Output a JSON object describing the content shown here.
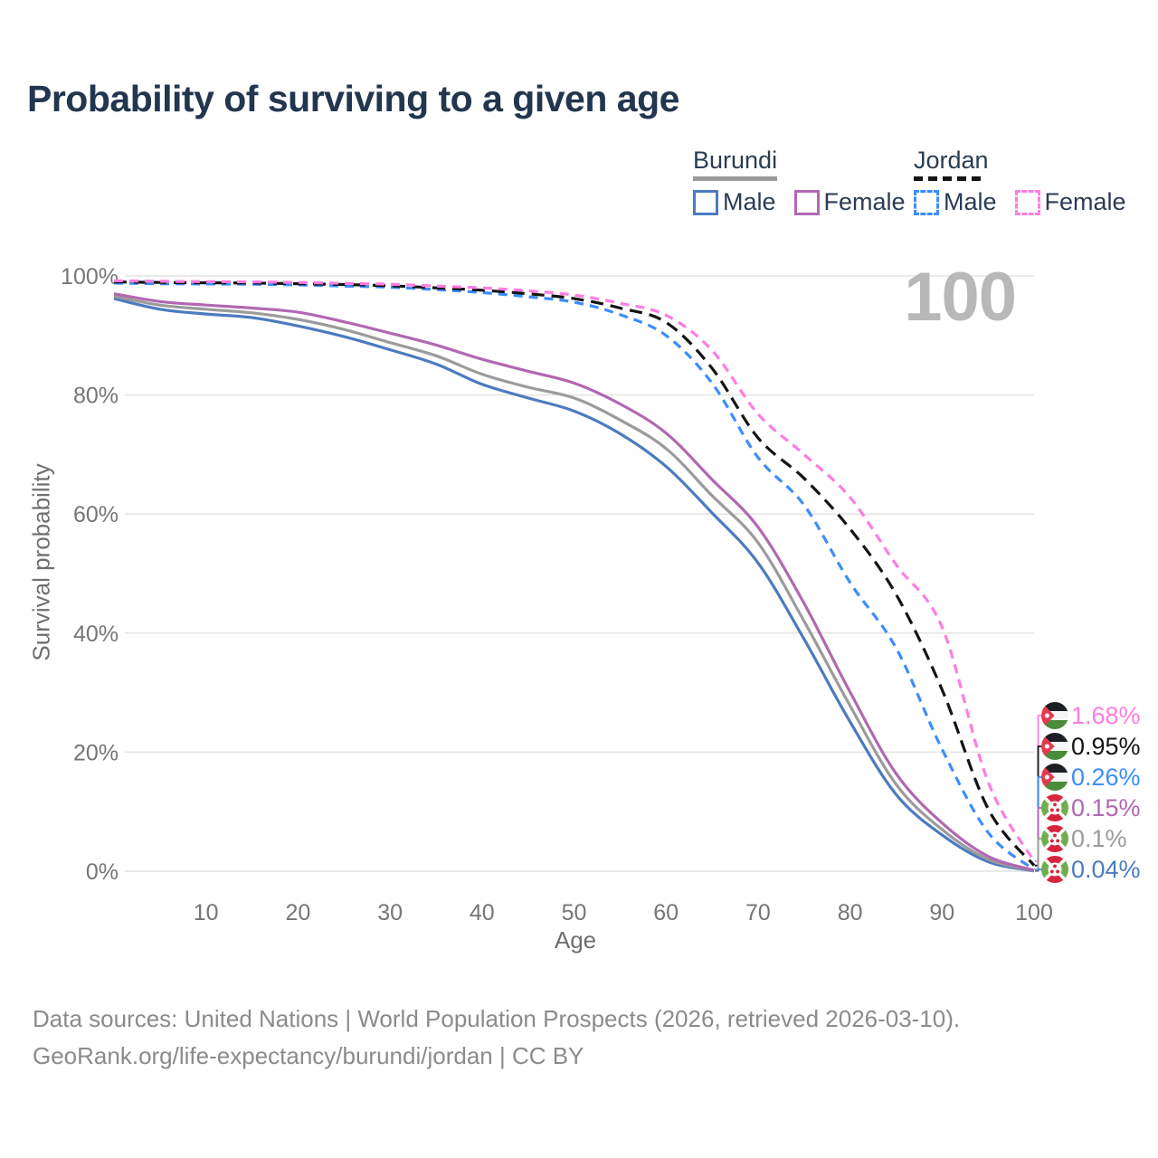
{
  "title": "Probability of surviving to a given age",
  "watermark": "100",
  "legend": {
    "groups": [
      {
        "label": "Burundi",
        "line_style": "solid",
        "line_color": "#9b9b9b",
        "underline_width": 93,
        "items": [
          {
            "label": "Male",
            "color": "#4b7bc0",
            "style": "solid"
          },
          {
            "label": "Female",
            "color": "#b168b1",
            "style": "solid"
          }
        ]
      },
      {
        "label": "Jordan",
        "line_style": "dashed",
        "line_color": "#141414",
        "underline_width": 78,
        "items": [
          {
            "label": "Male",
            "color": "#3c8dfc",
            "style": "dashed"
          },
          {
            "label": "Female",
            "color": "#ff7ce1",
            "style": "dashed"
          }
        ]
      }
    ]
  },
  "chart_data": {
    "type": "line",
    "title": "Probability of surviving to a given age",
    "xlabel": "Age",
    "ylabel": "Survival probability",
    "xlim": [
      0,
      100
    ],
    "ylim": [
      0,
      100
    ],
    "x_ticks": [
      10,
      20,
      30,
      40,
      50,
      60,
      70,
      80,
      90,
      100
    ],
    "y_ticks": [
      0,
      20,
      40,
      60,
      80,
      100
    ],
    "y_tick_suffix": "%",
    "grid": "horizontal",
    "legend_position": "top-right",
    "x": [
      0,
      5,
      10,
      15,
      20,
      25,
      30,
      35,
      40,
      45,
      50,
      55,
      60,
      65,
      70,
      75,
      80,
      85,
      90,
      95,
      100
    ],
    "series": [
      {
        "name": "Jordan Female",
        "country": "Jordan",
        "sex": "Female",
        "color": "#ff7ce1",
        "dash": "dashed",
        "end_label": "1.68%",
        "values": [
          99.2,
          99.1,
          99.05,
          99.0,
          98.9,
          98.75,
          98.6,
          98.3,
          98.0,
          97.5,
          96.8,
          95.4,
          93.4,
          87.5,
          76.8,
          70.0,
          62.8,
          51.5,
          41.0,
          15.0,
          1.68
        ]
      },
      {
        "name": "Jordan Both sexes",
        "country": "Jordan",
        "sex": "Both",
        "color": "#141414",
        "dash": "dashed-long",
        "end_label": "0.95%",
        "values": [
          99.0,
          98.9,
          98.85,
          98.8,
          98.7,
          98.55,
          98.35,
          98.0,
          97.6,
          97.0,
          96.2,
          94.6,
          92.2,
          84.5,
          72.8,
          66.0,
          57.5,
          46.5,
          30.5,
          10.5,
          0.95
        ]
      },
      {
        "name": "Jordan Male",
        "country": "Jordan",
        "sex": "Male",
        "color": "#3c8dfc",
        "dash": "dashed",
        "end_label": "0.26%",
        "values": [
          98.8,
          98.7,
          98.65,
          98.6,
          98.5,
          98.3,
          98.1,
          97.7,
          97.2,
          96.5,
          95.6,
          93.5,
          90.0,
          82.0,
          69.5,
          61.5,
          48.5,
          37.5,
          20.5,
          6.5,
          0.26
        ]
      },
      {
        "name": "Burundi Female",
        "country": "Burundi",
        "sex": "Female",
        "color": "#b168b1",
        "dash": "solid",
        "end_label": "0.15%",
        "values": [
          97.0,
          95.7,
          95.1,
          94.6,
          93.9,
          92.3,
          90.4,
          88.4,
          86.0,
          84.0,
          82.0,
          78.5,
          73.6,
          65.8,
          57.8,
          45.0,
          30.1,
          16.4,
          8.1,
          2.5,
          0.15
        ]
      },
      {
        "name": "Burundi Both sexes",
        "country": "Burundi",
        "sex": "Both",
        "color": "#9b9b9b",
        "dash": "solid",
        "end_label": "0.1%",
        "values": [
          96.6,
          95.1,
          94.4,
          93.8,
          92.7,
          91.0,
          88.8,
          86.6,
          83.5,
          81.3,
          79.5,
          75.8,
          71.0,
          63.1,
          55.2,
          42.0,
          27.8,
          14.6,
          7.0,
          2.0,
          0.1
        ]
      },
      {
        "name": "Burundi Male",
        "country": "Burundi",
        "sex": "Male",
        "color": "#4b7bc0",
        "dash": "solid",
        "end_label": "0.04%",
        "values": [
          96.2,
          94.4,
          93.6,
          93.0,
          91.6,
          89.8,
          87.6,
          85.2,
          81.8,
          79.5,
          77.3,
          73.5,
          68.0,
          60.2,
          51.8,
          39.0,
          25.1,
          12.9,
          6.1,
          1.6,
          0.04
        ]
      }
    ]
  },
  "caption": {
    "line1": "Data sources: United Nations | World Population Prospects (2026, retrieved 2026-03-10).",
    "line2": "GeoRank.org/life-expectancy/burundi/jordan | CC BY"
  }
}
